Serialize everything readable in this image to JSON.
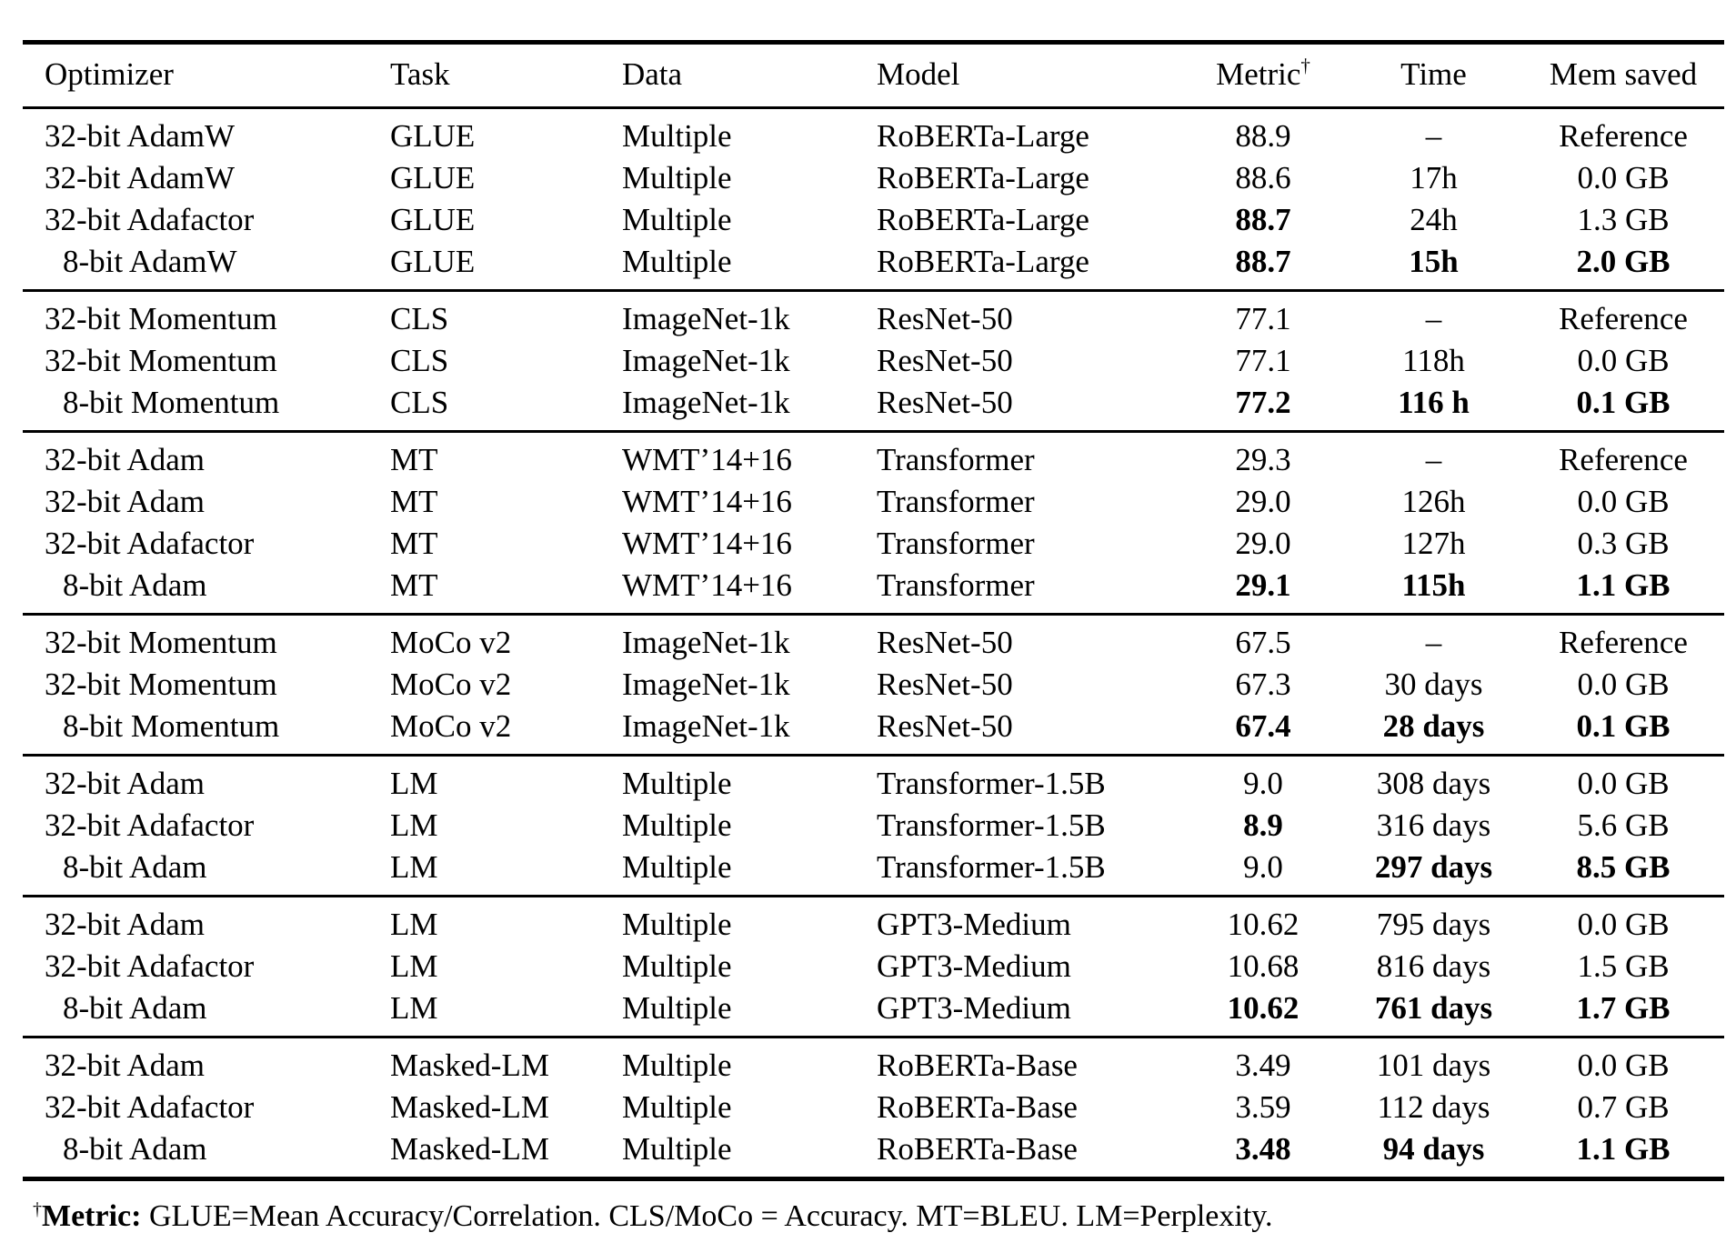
{
  "colors": {
    "text": "#000000",
    "background": "#ffffff",
    "rule": "#000000"
  },
  "table": {
    "columns": [
      "Optimizer",
      "Task",
      "Data",
      "Model",
      "Metric",
      "Time",
      "Mem saved"
    ],
    "metric_superscript": "†",
    "groups": [
      {
        "rows": [
          {
            "optimizer": "32-bit AdamW",
            "task": "GLUE",
            "data": "Multiple",
            "model": "RoBERTa-Large",
            "metric": {
              "text": "88.9",
              "bold": false
            },
            "time": {
              "text": "–",
              "bold": false
            },
            "mem": {
              "text": "Reference",
              "bold": false
            }
          },
          {
            "optimizer": "32-bit AdamW",
            "task": "GLUE",
            "data": "Multiple",
            "model": "RoBERTa-Large",
            "metric": {
              "text": "88.6",
              "bold": false
            },
            "time": {
              "text": "17h",
              "bold": false
            },
            "mem": {
              "text": "0.0 GB",
              "bold": false
            }
          },
          {
            "optimizer": "32-bit Adafactor",
            "task": "GLUE",
            "data": "Multiple",
            "model": "RoBERTa-Large",
            "metric": {
              "text": "88.7",
              "bold": true
            },
            "time": {
              "text": "24h",
              "bold": false
            },
            "mem": {
              "text": "1.3 GB",
              "bold": false
            }
          },
          {
            "optimizer": "8-bit AdamW",
            "task": "GLUE",
            "data": "Multiple",
            "model": "RoBERTa-Large",
            "metric": {
              "text": "88.7",
              "bold": true
            },
            "time": {
              "text": "15h",
              "bold": true
            },
            "mem": {
              "text": "2.0 GB",
              "bold": true
            }
          }
        ]
      },
      {
        "rows": [
          {
            "optimizer": "32-bit Momentum",
            "task": "CLS",
            "data": "ImageNet-1k",
            "model": "ResNet-50",
            "metric": {
              "text": "77.1",
              "bold": false
            },
            "time": {
              "text": "–",
              "bold": false
            },
            "mem": {
              "text": "Reference",
              "bold": false
            }
          },
          {
            "optimizer": "32-bit Momentum",
            "task": "CLS",
            "data": "ImageNet-1k",
            "model": "ResNet-50",
            "metric": {
              "text": "77.1",
              "bold": false
            },
            "time": {
              "text": "118h",
              "bold": false
            },
            "mem": {
              "text": "0.0 GB",
              "bold": false
            }
          },
          {
            "optimizer": "8-bit Momentum",
            "task": "CLS",
            "data": "ImageNet-1k",
            "model": "ResNet-50",
            "metric": {
              "text": "77.2",
              "bold": true
            },
            "time": {
              "text": "116 h",
              "bold": true
            },
            "mem": {
              "text": "0.1 GB",
              "bold": true
            }
          }
        ]
      },
      {
        "rows": [
          {
            "optimizer": "32-bit Adam",
            "task": "MT",
            "data": "WMT’14+16",
            "model": "Transformer",
            "metric": {
              "text": "29.3",
              "bold": false
            },
            "time": {
              "text": "–",
              "bold": false
            },
            "mem": {
              "text": "Reference",
              "bold": false
            }
          },
          {
            "optimizer": "32-bit Adam",
            "task": "MT",
            "data": "WMT’14+16",
            "model": "Transformer",
            "metric": {
              "text": "29.0",
              "bold": false
            },
            "time": {
              "text": "126h",
              "bold": false
            },
            "mem": {
              "text": "0.0 GB",
              "bold": false
            }
          },
          {
            "optimizer": "32-bit Adafactor",
            "task": "MT",
            "data": "WMT’14+16",
            "model": "Transformer",
            "metric": {
              "text": "29.0",
              "bold": false
            },
            "time": {
              "text": "127h",
              "bold": false
            },
            "mem": {
              "text": "0.3 GB",
              "bold": false
            }
          },
          {
            "optimizer": "8-bit Adam",
            "task": "MT",
            "data": "WMT’14+16",
            "model": "Transformer",
            "metric": {
              "text": "29.1",
              "bold": true
            },
            "time": {
              "text": "115h",
              "bold": true
            },
            "mem": {
              "text": "1.1 GB",
              "bold": true
            }
          }
        ]
      },
      {
        "rows": [
          {
            "optimizer": "32-bit Momentum",
            "task": "MoCo v2",
            "data": "ImageNet-1k",
            "model": "ResNet-50",
            "metric": {
              "text": "67.5",
              "bold": false
            },
            "time": {
              "text": "–",
              "bold": false
            },
            "mem": {
              "text": "Reference",
              "bold": false
            }
          },
          {
            "optimizer": "32-bit Momentum",
            "task": "MoCo v2",
            "data": "ImageNet-1k",
            "model": "ResNet-50",
            "metric": {
              "text": "67.3",
              "bold": false
            },
            "time": {
              "text": "30 days",
              "bold": false
            },
            "mem": {
              "text": "0.0 GB",
              "bold": false
            }
          },
          {
            "optimizer": "8-bit Momentum",
            "task": "MoCo v2",
            "data": "ImageNet-1k",
            "model": "ResNet-50",
            "metric": {
              "text": "67.4",
              "bold": true
            },
            "time": {
              "text": "28 days",
              "bold": true
            },
            "mem": {
              "text": "0.1 GB",
              "bold": true
            }
          }
        ]
      },
      {
        "rows": [
          {
            "optimizer": "32-bit Adam",
            "task": "LM",
            "data": "Multiple",
            "model": "Transformer-1.5B",
            "metric": {
              "text": "9.0",
              "bold": false
            },
            "time": {
              "text": "308 days",
              "bold": false
            },
            "mem": {
              "text": "0.0 GB",
              "bold": false
            }
          },
          {
            "optimizer": "32-bit Adafactor",
            "task": "LM",
            "data": "Multiple",
            "model": "Transformer-1.5B",
            "metric": {
              "text": "8.9",
              "bold": true
            },
            "time": {
              "text": "316 days",
              "bold": false
            },
            "mem": {
              "text": "5.6 GB",
              "bold": false
            }
          },
          {
            "optimizer": "8-bit Adam",
            "task": "LM",
            "data": "Multiple",
            "model": "Transformer-1.5B",
            "metric": {
              "text": "9.0",
              "bold": false
            },
            "time": {
              "text": "297 days",
              "bold": true
            },
            "mem": {
              "text": "8.5 GB",
              "bold": true
            }
          }
        ]
      },
      {
        "rows": [
          {
            "optimizer": "32-bit Adam",
            "task": "LM",
            "data": "Multiple",
            "model": "GPT3-Medium",
            "metric": {
              "text": "10.62",
              "bold": false
            },
            "time": {
              "text": "795 days",
              "bold": false
            },
            "mem": {
              "text": "0.0 GB",
              "bold": false
            }
          },
          {
            "optimizer": "32-bit Adafactor",
            "task": "LM",
            "data": "Multiple",
            "model": "GPT3-Medium",
            "metric": {
              "text": "10.68",
              "bold": false
            },
            "time": {
              "text": "816 days",
              "bold": false
            },
            "mem": {
              "text": "1.5 GB",
              "bold": false
            }
          },
          {
            "optimizer": "8-bit Adam",
            "task": "LM",
            "data": "Multiple",
            "model": "GPT3-Medium",
            "metric": {
              "text": "10.62",
              "bold": true
            },
            "time": {
              "text": "761 days",
              "bold": true
            },
            "mem": {
              "text": "1.7 GB",
              "bold": true
            }
          }
        ]
      },
      {
        "rows": [
          {
            "optimizer": "32-bit Adam",
            "task": "Masked-LM",
            "data": "Multiple",
            "model": "RoBERTa-Base",
            "metric": {
              "text": "3.49",
              "bold": false
            },
            "time": {
              "text": "101 days",
              "bold": false
            },
            "mem": {
              "text": "0.0 GB",
              "bold": false
            }
          },
          {
            "optimizer": "32-bit Adafactor",
            "task": "Masked-LM",
            "data": "Multiple",
            "model": "RoBERTa-Base",
            "metric": {
              "text": "3.59",
              "bold": false
            },
            "time": {
              "text": "112 days",
              "bold": false
            },
            "mem": {
              "text": "0.7 GB",
              "bold": false
            }
          },
          {
            "optimizer": "8-bit Adam",
            "task": "Masked-LM",
            "data": "Multiple",
            "model": "RoBERTa-Base",
            "metric": {
              "text": "3.48",
              "bold": true
            },
            "time": {
              "text": "94 days",
              "bold": true
            },
            "mem": {
              "text": "1.1 GB",
              "bold": true
            }
          }
        ]
      }
    ]
  },
  "footnote": {
    "dagger": "†",
    "label": "Metric:",
    "rest": " GLUE=Mean Accuracy/Correlation. CLS/MoCo = Accuracy. MT=BLEU. LM=Perplexity."
  }
}
